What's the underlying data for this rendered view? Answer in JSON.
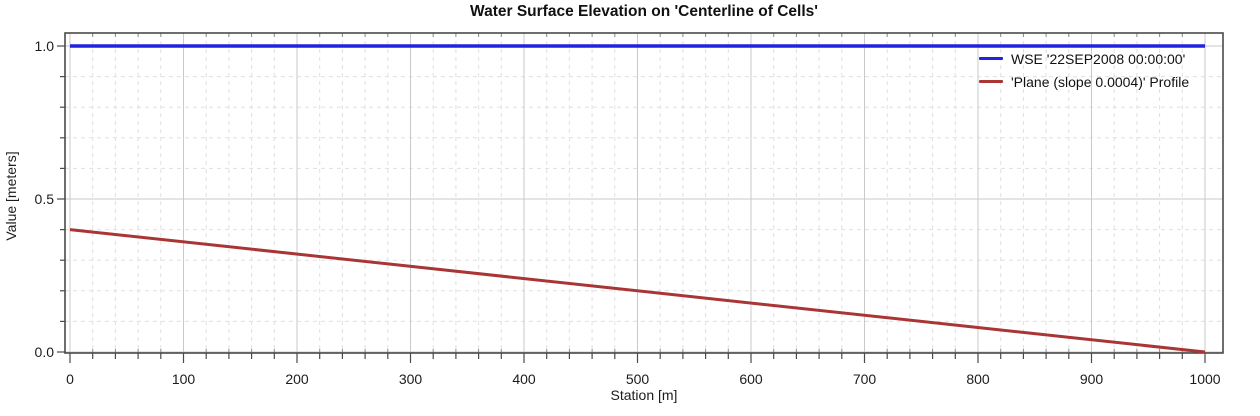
{
  "chart_data": {
    "type": "line",
    "title": "Water Surface Elevation on 'Centerline of Cells'",
    "xlabel": "Station [m]",
    "ylabel": "Value [meters]",
    "xlim": [
      0,
      1000
    ],
    "ylim": [
      0,
      1
    ],
    "x_ticks": [
      0,
      100,
      200,
      300,
      400,
      500,
      600,
      700,
      800,
      900,
      1000
    ],
    "x_minor_step": 20,
    "y_ticks": [
      {
        "value": 0,
        "label": "0.0"
      },
      {
        "value": 0.5,
        "label": "0.5"
      },
      {
        "value": 1,
        "label": "1.0"
      }
    ],
    "y_minor_step": 0.1,
    "grid": {
      "major": "solid",
      "minor": "dashed",
      "shown": true
    },
    "legend_position": "top-right",
    "series": [
      {
        "name": "WSE '22SEP2008 00:00:00'",
        "color": "#2222df",
        "points": [
          [
            0,
            1.0
          ],
          [
            1000,
            1.0
          ]
        ]
      },
      {
        "name": "'Plane (slope 0.0004)' Profile",
        "color": "#a93535",
        "points": [
          [
            0,
            0.4
          ],
          [
            1000,
            0.0
          ]
        ]
      }
    ]
  }
}
